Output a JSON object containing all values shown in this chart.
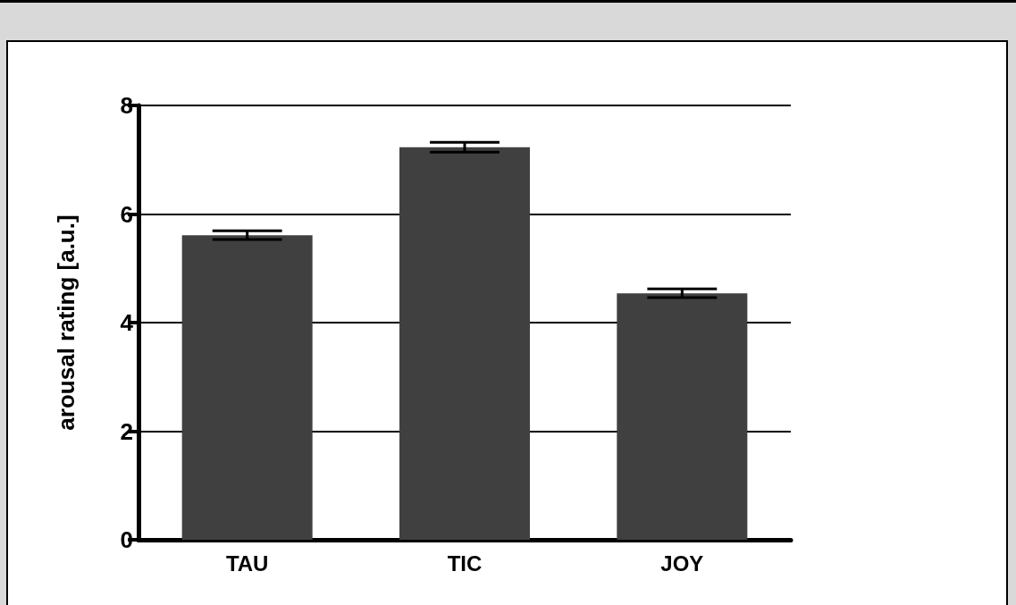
{
  "chart_data": {
    "type": "bar",
    "ylabel": "arousal rating [a.u.]",
    "categories": [
      "TAU",
      "TIC",
      "JOY"
    ],
    "values": [
      5.61,
      7.23,
      4.54
    ],
    "errors": [
      0.08,
      0.09,
      0.08
    ],
    "color": "#404040",
    "ylim": [
      0,
      8
    ],
    "yticks": [
      0,
      2,
      4,
      6,
      8
    ],
    "grid": "y"
  }
}
